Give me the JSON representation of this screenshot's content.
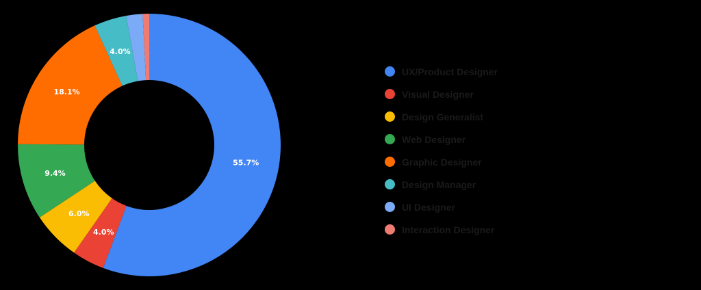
{
  "chart_data": {
    "type": "pie",
    "subtype": "donut",
    "title": "",
    "categories": [
      "UX/Product Designer",
      "Visual Designer",
      "Design Generalist",
      "Web Designer",
      "Graphic Designer",
      "Design Manager",
      "UI Designer",
      "Interaction Designer"
    ],
    "values": [
      55.7,
      4.0,
      6.0,
      9.4,
      18.1,
      4.0,
      2.0,
      0.8
    ],
    "labels": [
      "55.7%",
      "4.0%",
      "6.0%",
      "9.4%",
      "18.1%",
      "4.0%",
      "",
      ""
    ],
    "colors": [
      "#4285f4",
      "#ea4335",
      "#fbbc04",
      "#34a853",
      "#ff6d01",
      "#46bdc6",
      "#7baaf7",
      "#f07b72"
    ],
    "legend_position": "right",
    "start_angle": 0,
    "direction": "clockwise"
  },
  "legend": {
    "items": [
      {
        "label": "UX/Product Designer",
        "color": "#4285f4"
      },
      {
        "label": "Visual Designer",
        "color": "#ea4335"
      },
      {
        "label": "Design Generalist",
        "color": "#fbbc04"
      },
      {
        "label": "Web Designer",
        "color": "#34a853"
      },
      {
        "label": "Graphic Designer",
        "color": "#ff6d01"
      },
      {
        "label": "Design Manager",
        "color": "#46bdc6"
      },
      {
        "label": "UI Designer",
        "color": "#7baaf7"
      },
      {
        "label": "Interaction Designer",
        "color": "#f07b72"
      }
    ]
  }
}
